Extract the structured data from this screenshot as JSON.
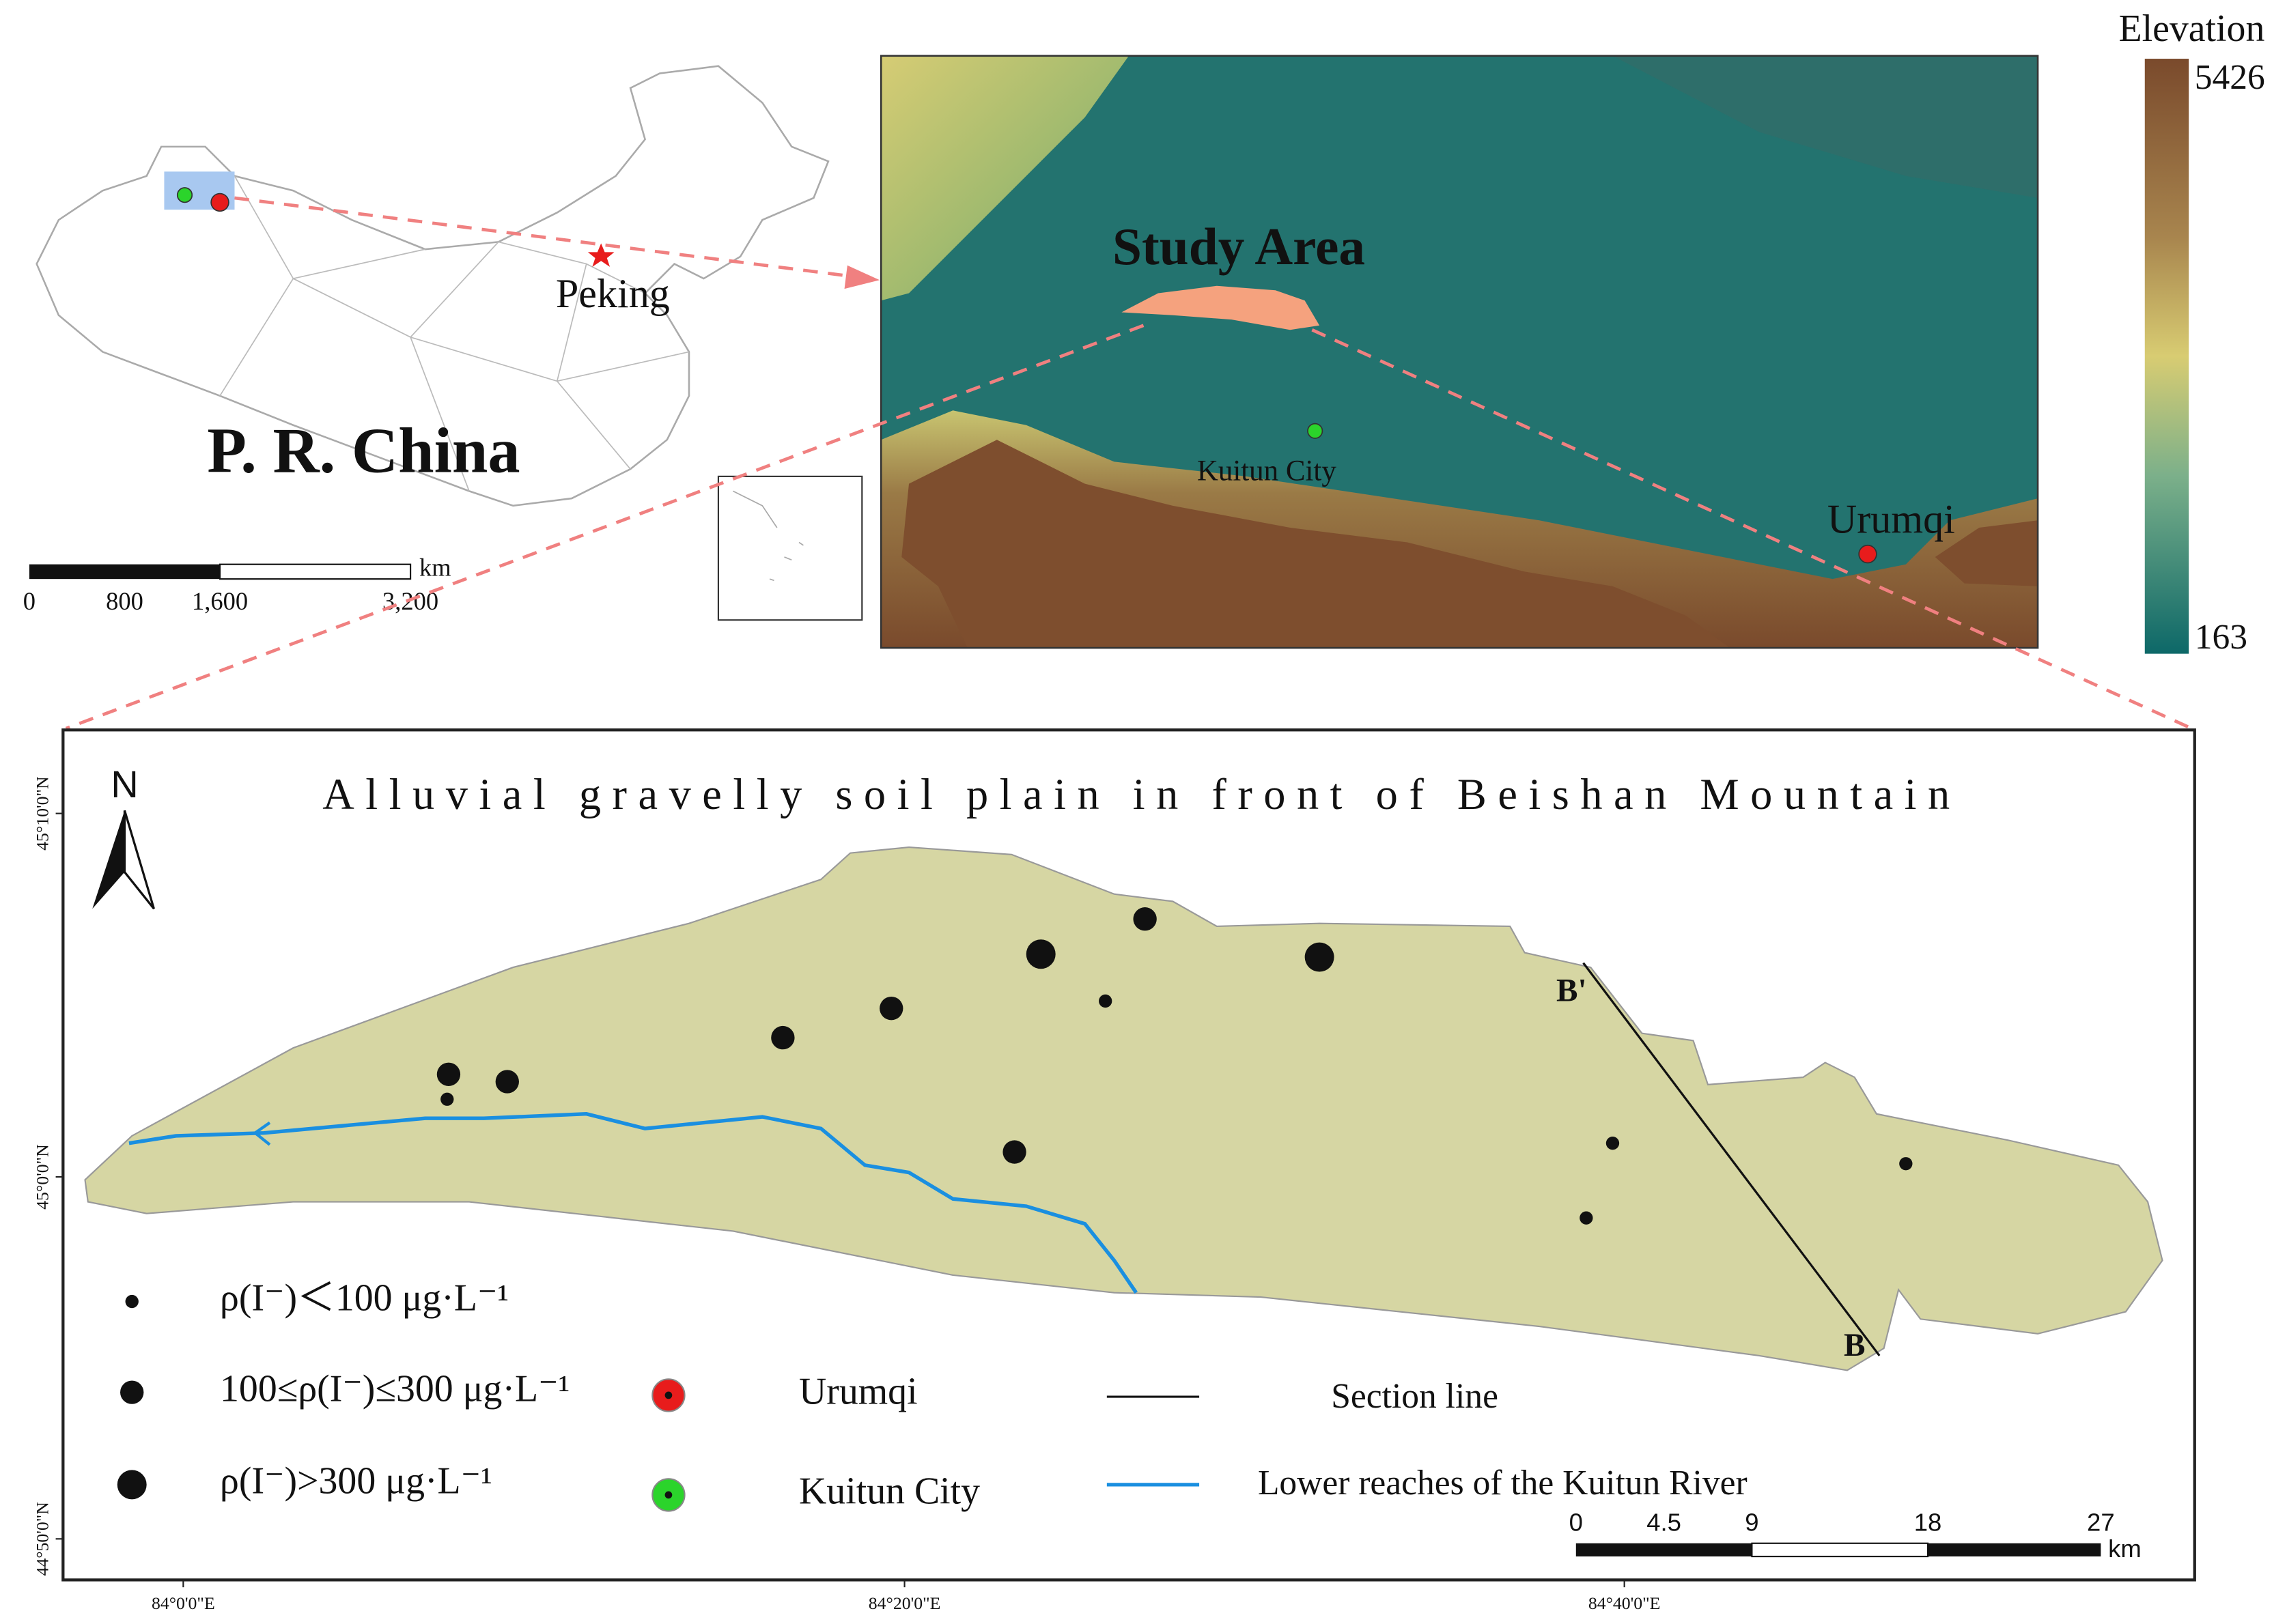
{
  "china_inset": {
    "title": "P. R. China",
    "capital": "Peking",
    "scale_bar": {
      "labels": [
        "0",
        "800",
        "1,600",
        "3,200"
      ],
      "unit": "km"
    }
  },
  "dem_map": {
    "study_area": "Study Area",
    "cities": [
      "Kuitun City",
      "Urumqi"
    ],
    "legend": {
      "title": "Elevation",
      "max": 5426,
      "min": 163
    }
  },
  "detail_map": {
    "title": "Alluvial gravelly soil plain in front of Beishan Mountain",
    "north": "N",
    "section_ends": [
      "B'",
      "B"
    ],
    "lat_labels": [
      "45°10'0\"N",
      "45°0'0\"N",
      "44°50'0\"N"
    ],
    "lon_labels": [
      "84°0'0\"E",
      "84°20'0\"E",
      "84°40'0\"E"
    ],
    "scale_bar": {
      "labels": [
        "0",
        "4.5",
        "9",
        "18",
        "27"
      ],
      "unit": "km"
    },
    "legend": {
      "concentration": [
        "ρ(I⁻)＜100 μg·L⁻¹",
        "100≤ρ(I⁻)≤300 μg·L⁻¹",
        "ρ(I⁻)>300 μg·L⁻¹"
      ],
      "cities": [
        "Urumqi",
        "Kuitun City"
      ],
      "lines": [
        "Section line",
        "Lower reaches of the Kuitun River"
      ]
    }
  }
}
